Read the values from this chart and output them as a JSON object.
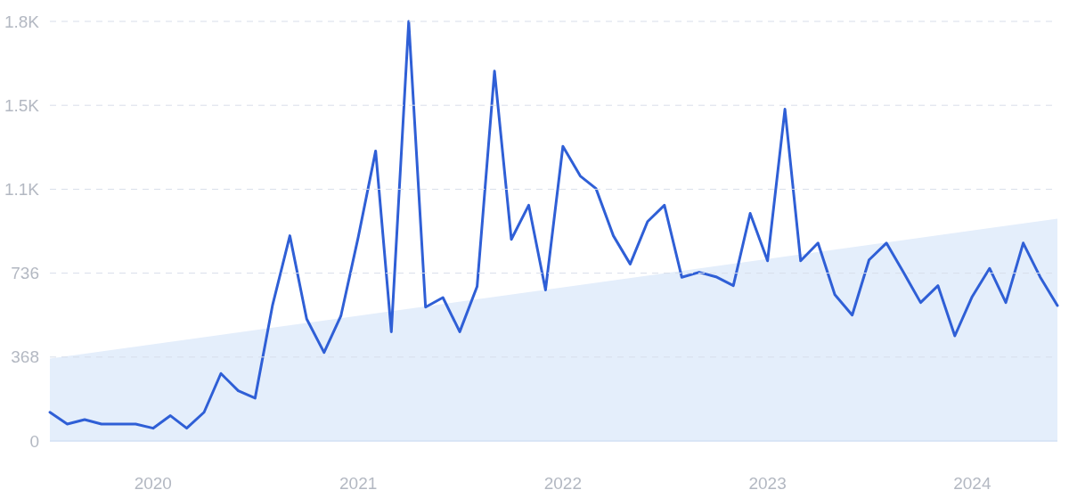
{
  "chart_data": {
    "type": "line",
    "x": [
      "2019-07",
      "2019-08",
      "2019-09",
      "2019-10",
      "2019-11",
      "2019-12",
      "2020-01",
      "2020-02",
      "2020-03",
      "2020-04",
      "2020-05",
      "2020-06",
      "2020-07",
      "2020-08",
      "2020-09",
      "2020-10",
      "2020-11",
      "2020-12",
      "2021-01",
      "2021-02",
      "2021-03",
      "2021-04",
      "2021-05",
      "2021-06",
      "2021-07",
      "2021-08",
      "2021-09",
      "2021-10",
      "2021-11",
      "2021-12",
      "2022-01",
      "2022-02",
      "2022-03",
      "2022-04",
      "2022-05",
      "2022-06",
      "2022-07",
      "2022-08",
      "2022-09",
      "2022-10",
      "2022-11",
      "2022-12",
      "2023-01",
      "2023-02",
      "2023-03",
      "2023-04",
      "2023-05",
      "2023-06",
      "2023-07",
      "2023-08",
      "2023-09",
      "2023-10",
      "2023-11",
      "2023-12",
      "2024-01",
      "2024-02",
      "2024-03",
      "2024-04",
      "2024-05",
      "2024-06"
    ],
    "series": [
      {
        "type": "area",
        "x": [
          "2019-07",
          "2024-06"
        ],
        "values": [
          361,
          975
        ],
        "color": "#e4eefb"
      },
      {
        "color": "#2f5fd6",
        "values": [
          126,
          74,
          94,
          74,
          74,
          74,
          56,
          111,
          56,
          126,
          296,
          220,
          188,
          594,
          900,
          535,
          388,
          548,
          894,
          1272,
          479,
          1840,
          587,
          629,
          479,
          678,
          1622,
          884,
          1034,
          662,
          1292,
          1162,
          1107,
          900,
          776,
          962,
          1034,
          718,
          740,
          720,
          681,
          998,
          790,
          1455,
          790,
          868,
          642,
          552,
          794,
          868,
          737,
          607,
          681,
          461,
          633,
          757,
          607,
          868,
          720,
          594
        ]
      }
    ],
    "xlim": [
      "2019-07",
      "2024-06"
    ],
    "xticks": [
      {
        "value": "2020-01",
        "label": "2020"
      },
      {
        "value": "2021-01",
        "label": "2021"
      },
      {
        "value": "2022-01",
        "label": "2022"
      },
      {
        "value": "2023-01",
        "label": "2023"
      },
      {
        "value": "2024-01",
        "label": "2024"
      }
    ],
    "ylim": [
      0,
      1840
    ],
    "yticks": [
      0,
      368,
      736,
      {
        "value": 1104,
        "label": "1.1K"
      },
      {
        "value": 1472,
        "label": "1.5K"
      },
      {
        "value": 1840,
        "label": "1.8K"
      }
    ],
    "grid": "y",
    "line_style": "solid"
  }
}
